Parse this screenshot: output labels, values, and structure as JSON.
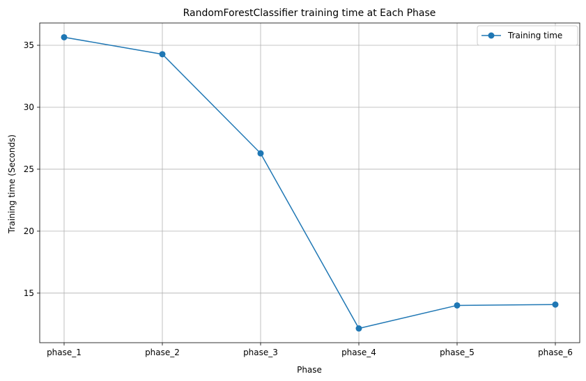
{
  "chart_data": {
    "type": "line",
    "title": "RandomForestClassifier training time at Each Phase",
    "xlabel": "Phase",
    "ylabel": "Training time (Seconds)",
    "categories": [
      "phase_1",
      "phase_2",
      "phase_3",
      "phase_4",
      "phase_5",
      "phase_6"
    ],
    "series": [
      {
        "name": "Training time",
        "values": [
          35.65,
          34.28,
          26.28,
          12.15,
          14.01,
          14.08
        ],
        "color": "#1f77b4",
        "marker": "circle"
      }
    ],
    "ylim": [
      11.0,
      36.8
    ],
    "yticks": [
      15,
      20,
      25,
      30,
      35
    ],
    "grid": true,
    "legend_position": "top-right"
  }
}
